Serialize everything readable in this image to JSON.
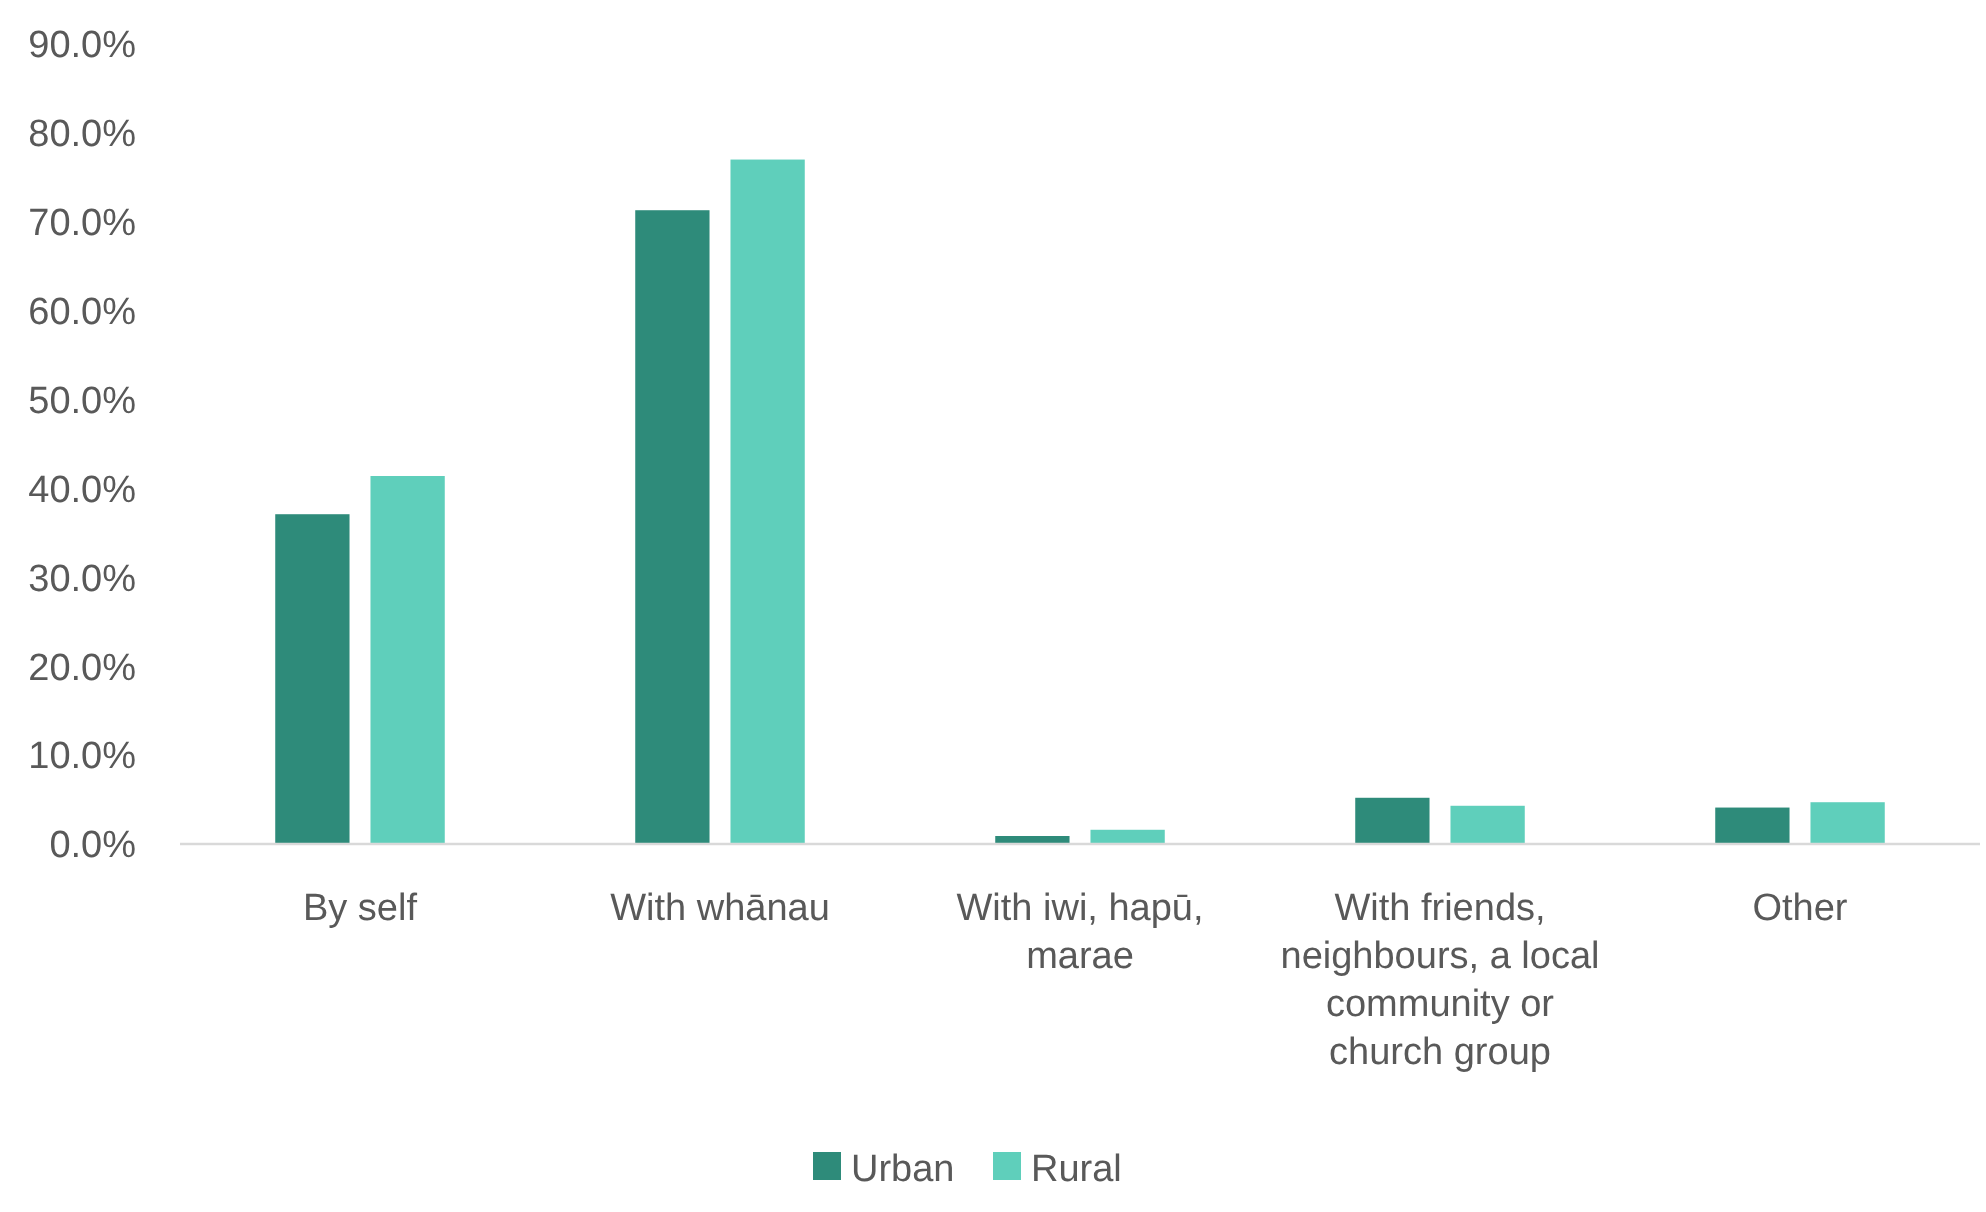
{
  "chart_data": {
    "type": "bar",
    "categories": [
      "By self",
      "With whānau",
      "With iwi, hapū, marae",
      "With friends, neighbours, a local community or church group",
      "Other"
    ],
    "series": [
      {
        "name": "Urban",
        "color": "#2e8b7a",
        "values": [
          37.1,
          71.3,
          0.9,
          5.2,
          4.1
        ]
      },
      {
        "name": "Rural",
        "color": "#5fcfbb",
        "values": [
          41.4,
          77.0,
          1.6,
          4.3,
          4.7
        ]
      }
    ],
    "ylim": [
      0,
      90
    ],
    "yticks": [
      {
        "value": 0,
        "label": "0.0%"
      },
      {
        "value": 10,
        "label": "10.0%"
      },
      {
        "value": 20,
        "label": "20.0%"
      },
      {
        "value": 30,
        "label": "30.0%"
      },
      {
        "value": 40,
        "label": "40.0%"
      },
      {
        "value": 50,
        "label": "50.0%"
      },
      {
        "value": 60,
        "label": "60.0%"
      },
      {
        "value": 70,
        "label": "70.0%"
      },
      {
        "value": 80,
        "label": "80.0%"
      },
      {
        "value": 90,
        "label": "90.0%"
      }
    ],
    "grid": false,
    "legend": "bottom"
  }
}
